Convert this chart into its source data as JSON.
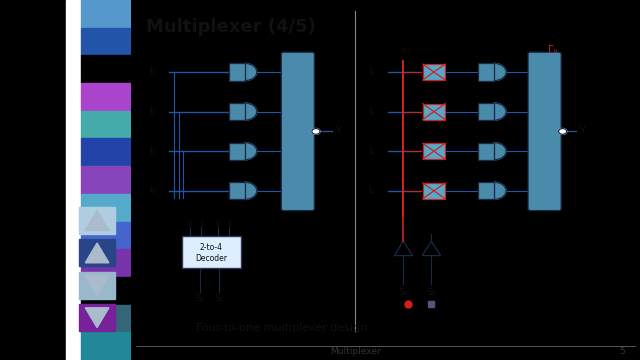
{
  "title": "Multiplexer (4/5)",
  "bg_color": "#5ab8cc",
  "slide_bg": "#000000",
  "sidebar_stripe_colors": [
    "#5588bb",
    "#2255aa",
    "#000000",
    "#aa44cc",
    "#44aaaa",
    "#2244aa",
    "#8844bb",
    "#55aacc",
    "#4466cc",
    "#7733aa",
    "#000000",
    "#336677",
    "#33889a"
  ],
  "footer_text": "Multiplexer",
  "footer_page": "5",
  "caption": "Four-to-one multiplexer design.",
  "wire_color": "#2255aa",
  "gate_fill": "#4a8aaa",
  "gate_edge": "#1a2a44",
  "highlight_color": "#cc2222",
  "text_color": "#111111",
  "decoder_fill": "#ddeeff"
}
